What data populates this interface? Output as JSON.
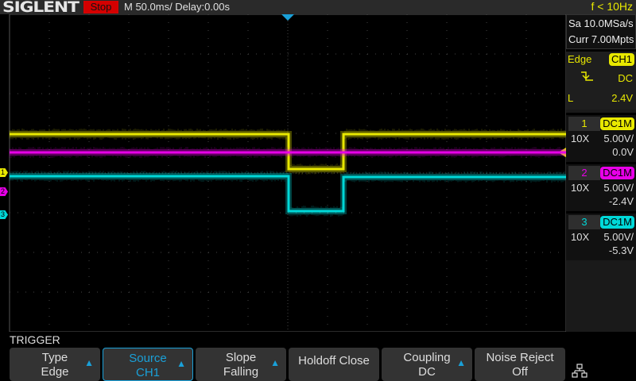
{
  "header": {
    "brand": "SIGLENT",
    "run_state": "Stop",
    "timebase": "M 50.0ms/ Delay:0.00s",
    "frequency": "f < 10Hz"
  },
  "acquisition": {
    "sample_rate": "Sa 10.0MSa/s",
    "memory": "Curr 7.00Mpts"
  },
  "trigger_panel": {
    "type": "Edge",
    "source": "CH1",
    "slope_icon": "falling-edge-icon",
    "coupling": "DC",
    "level_label": "L",
    "level": "2.4V"
  },
  "channels": [
    {
      "num": "1",
      "coupling": "DC1M",
      "probe": "10X",
      "scale": "5.00V/",
      "offset": "0.0V",
      "color": "#e8e800"
    },
    {
      "num": "2",
      "coupling": "DC1M",
      "probe": "10X",
      "scale": "5.00V/",
      "offset": "-2.4V",
      "color": "#e800e8"
    },
    {
      "num": "3",
      "coupling": "DC1M",
      "probe": "10X",
      "scale": "5.00V/",
      "offset": "-5.3V",
      "color": "#00d8d8"
    }
  ],
  "menu": {
    "title": "TRIGGER",
    "buttons": [
      {
        "l1": "Type",
        "l2": "Edge",
        "arrow": true
      },
      {
        "l1": "Source",
        "l2": "CH1",
        "arrow": true,
        "selected": true
      },
      {
        "l1": "Slope",
        "l2": "Falling",
        "arrow": true
      },
      {
        "l1": "Holdoff Close",
        "l2": "",
        "arrow": false
      },
      {
        "l1": "Coupling",
        "l2": "DC",
        "arrow": true
      },
      {
        "l1": "Noise Reject",
        "l2": "Off",
        "arrow": false
      }
    ],
    "network_icon": "network-icon"
  },
  "colors": {
    "ch1": "#e8e800",
    "ch2": "#e800e8",
    "ch3": "#00d8d8",
    "accent": "#1aa0d8"
  }
}
